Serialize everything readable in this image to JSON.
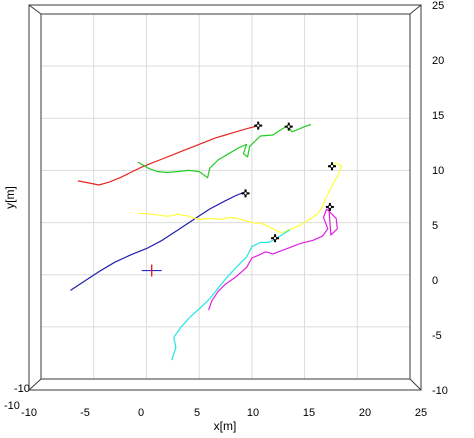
{
  "chart_data": {
    "type": "line",
    "title": "",
    "xlabel": "x[m]",
    "ylabel": "y[m]",
    "xlim": [
      -10,
      25
    ],
    "ylim": [
      -10,
      25
    ],
    "x_ticks": [
      -10,
      -5,
      0,
      5,
      10,
      15,
      20,
      25
    ],
    "y_ticks": [
      -10,
      -5,
      0,
      5,
      10,
      15,
      20,
      25
    ],
    "x_tick_labels": [
      "-10",
      "-5",
      "0",
      "5",
      "10",
      "15",
      "20",
      "25"
    ],
    "y_tick_labels": [
      "-10",
      "-5",
      "0",
      "5",
      "10",
      "15",
      "20",
      "25"
    ],
    "grid": true,
    "view": "3d-box",
    "series": [
      {
        "color": "#e8261e",
        "points": [
          [
            -6.5,
            9.0
          ],
          [
            -5.5,
            8.8
          ],
          [
            -4.5,
            8.6
          ],
          [
            -3.5,
            8.9
          ],
          [
            -2.5,
            9.3
          ],
          [
            -1.5,
            9.8
          ],
          [
            -0.5,
            10.3
          ],
          [
            0.5,
            10.7
          ],
          [
            1.5,
            11.1
          ],
          [
            2.5,
            11.5
          ],
          [
            3.5,
            11.9
          ],
          [
            4.5,
            12.3
          ],
          [
            5.5,
            12.7
          ],
          [
            6.5,
            13.1
          ],
          [
            7.5,
            13.4
          ],
          [
            8.5,
            13.7
          ],
          [
            9.5,
            14.0
          ],
          [
            10.3,
            14.2
          ],
          [
            10.6,
            14.4
          ]
        ]
      },
      {
        "color": "#22cc22",
        "points": [
          [
            -0.8,
            10.8
          ],
          [
            0.2,
            10.2
          ],
          [
            1.0,
            9.9
          ],
          [
            2.0,
            9.8
          ],
          [
            3.0,
            9.9
          ],
          [
            4.0,
            10.0
          ],
          [
            5.0,
            9.9
          ],
          [
            5.8,
            9.3
          ],
          [
            6.0,
            10.2
          ],
          [
            6.8,
            11.0
          ],
          [
            7.8,
            11.6
          ],
          [
            8.8,
            12.2
          ],
          [
            9.5,
            12.5
          ],
          [
            9.2,
            11.6
          ],
          [
            9.6,
            11.3
          ],
          [
            9.8,
            12.3
          ],
          [
            10.8,
            13.3
          ],
          [
            12.0,
            13.4
          ],
          [
            12.6,
            13.8
          ],
          [
            13.4,
            14.3
          ],
          [
            13.8,
            13.7
          ],
          [
            14.3,
            13.9
          ],
          [
            15.0,
            14.2
          ],
          [
            15.6,
            14.4
          ]
        ]
      },
      {
        "color": "#1e1ea8",
        "points": [
          [
            -7.2,
            -1.5
          ],
          [
            -6.0,
            -0.7
          ],
          [
            -4.5,
            0.3
          ],
          [
            -3.0,
            1.2
          ],
          [
            -1.5,
            1.9
          ],
          [
            0.0,
            2.5
          ],
          [
            1.5,
            3.3
          ],
          [
            3.0,
            4.3
          ],
          [
            4.5,
            5.3
          ],
          [
            6.0,
            6.3
          ],
          [
            7.5,
            7.1
          ],
          [
            8.5,
            7.6
          ],
          [
            9.5,
            8.0
          ]
        ]
      },
      {
        "color": "#ffff3c",
        "points": [
          [
            -0.8,
            5.9
          ],
          [
            0.5,
            5.8
          ],
          [
            2.0,
            5.6
          ],
          [
            3.0,
            5.8
          ],
          [
            4.0,
            5.6
          ],
          [
            5.0,
            5.3
          ],
          [
            6.0,
            5.4
          ],
          [
            7.0,
            5.3
          ],
          [
            8.0,
            5.5
          ],
          [
            9.0,
            5.3
          ],
          [
            10.0,
            5.0
          ],
          [
            11.0,
            4.9
          ],
          [
            12.0,
            4.4
          ],
          [
            12.8,
            4.0
          ],
          [
            13.5,
            4.3
          ],
          [
            14.5,
            4.7
          ],
          [
            15.5,
            5.3
          ],
          [
            16.3,
            5.9
          ],
          [
            16.7,
            6.6
          ],
          [
            17.0,
            7.3
          ],
          [
            17.4,
            8.1
          ],
          [
            17.8,
            8.9
          ],
          [
            18.2,
            9.6
          ],
          [
            18.5,
            10.4
          ],
          [
            18.0,
            10.7
          ],
          [
            17.6,
            10.3
          ]
        ]
      },
      {
        "color": "#22e6e6",
        "points": [
          [
            2.4,
            -8.2
          ],
          [
            2.8,
            -7.0
          ],
          [
            2.6,
            -6.0
          ],
          [
            3.3,
            -5.0
          ],
          [
            4.2,
            -4.0
          ],
          [
            5.2,
            -3.1
          ],
          [
            6.0,
            -2.3
          ],
          [
            6.8,
            -1.3
          ],
          [
            7.6,
            -0.3
          ],
          [
            8.6,
            0.8
          ],
          [
            9.5,
            1.7
          ],
          [
            10.0,
            2.7
          ],
          [
            10.8,
            3.1
          ],
          [
            11.6,
            3.1
          ],
          [
            12.2,
            3.4
          ],
          [
            12.8,
            3.8
          ],
          [
            13.6,
            4.3
          ]
        ]
      },
      {
        "color": "#e020e0",
        "points": [
          [
            5.9,
            -3.4
          ],
          [
            6.2,
            -2.5
          ],
          [
            6.8,
            -1.6
          ],
          [
            7.5,
            -0.9
          ],
          [
            8.5,
            -0.2
          ],
          [
            9.5,
            0.7
          ],
          [
            10.0,
            1.6
          ],
          [
            10.7,
            1.9
          ],
          [
            11.3,
            2.2
          ],
          [
            12.0,
            2.0
          ],
          [
            12.8,
            2.3
          ],
          [
            13.6,
            2.6
          ],
          [
            14.6,
            3.0
          ],
          [
            15.8,
            3.3
          ],
          [
            16.7,
            3.7
          ],
          [
            17.2,
            4.4
          ],
          [
            16.8,
            5.5
          ],
          [
            17.1,
            6.3
          ],
          [
            17.5,
            5.9
          ],
          [
            18.0,
            5.4
          ],
          [
            18.1,
            4.4
          ],
          [
            17.5,
            3.8
          ],
          [
            17.4,
            5.1
          ],
          [
            17.3,
            6.5
          ]
        ]
      }
    ],
    "end_markers": [
      [
        10.6,
        14.3
      ],
      [
        13.5,
        14.2
      ],
      [
        17.6,
        10.4
      ],
      [
        9.4,
        7.8
      ],
      [
        17.4,
        6.5
      ],
      [
        12.2,
        3.5
      ]
    ],
    "start_marker": [
      0.5,
      0.4
    ]
  }
}
